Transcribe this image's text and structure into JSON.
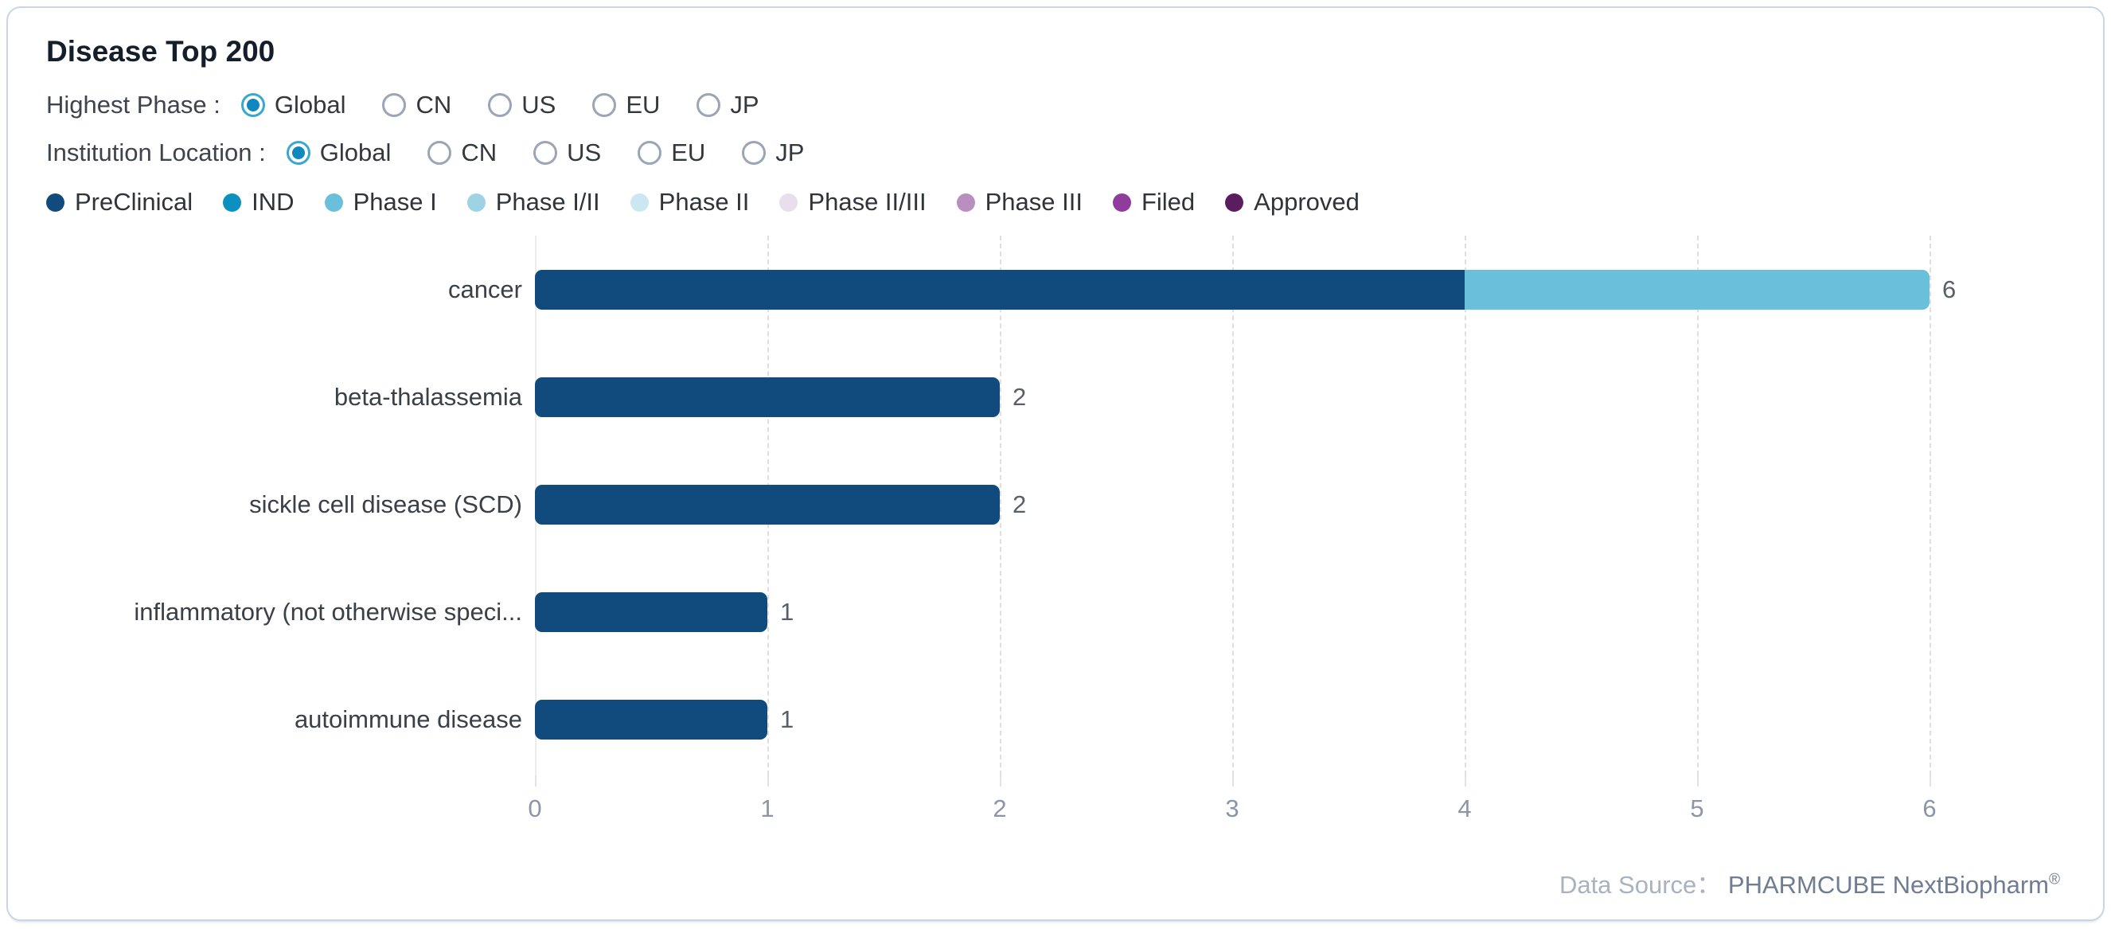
{
  "card": {
    "title": "Disease Top 200"
  },
  "controls": [
    {
      "id": "highest-phase",
      "label": "Highest Phase :",
      "options": [
        "Global",
        "CN",
        "US",
        "EU",
        "JP"
      ],
      "selected": "Global"
    },
    {
      "id": "institution-location",
      "label": "Institution Location :",
      "options": [
        "Global",
        "CN",
        "US",
        "EU",
        "JP"
      ],
      "selected": "Global"
    }
  ],
  "legend": [
    {
      "label": "PreClinical",
      "color": "#114b7d"
    },
    {
      "label": "IND",
      "color": "#0c90c2"
    },
    {
      "label": "Phase I",
      "color": "#6abfda"
    },
    {
      "label": "Phase I/II",
      "color": "#9dd3e3"
    },
    {
      "label": "Phase II",
      "color": "#cbe7f1"
    },
    {
      "label": "Phase II/III",
      "color": "#e9deec"
    },
    {
      "label": "Phase III",
      "color": "#b98fc0"
    },
    {
      "label": "Filed",
      "color": "#8f3c9c"
    },
    {
      "label": "Approved",
      "color": "#5b1c60"
    }
  ],
  "chart_data": {
    "type": "bar",
    "orientation": "horizontal",
    "categories": [
      "cancer",
      "beta-thalassemia",
      "sickle cell disease (SCD)",
      "inflammatory (not otherwise speci...",
      "autoimmune disease"
    ],
    "series": [
      {
        "name": "PreClinical",
        "color": "#114b7d",
        "values": [
          4,
          2,
          2,
          1,
          1
        ]
      },
      {
        "name": "Phase I",
        "color": "#6abfda",
        "values": [
          2,
          0,
          0,
          0,
          0
        ]
      }
    ],
    "totals": [
      6,
      2,
      2,
      1,
      1
    ],
    "x_ticks": [
      0,
      1,
      2,
      3,
      4,
      5,
      6
    ],
    "xlim": [
      0,
      6
    ],
    "grid": "dashed-vertical",
    "legend_position": "top-left"
  },
  "footer": {
    "label": "Data Source：",
    "source": "PHARMCUBE NextBiopharm",
    "registered": "®"
  }
}
